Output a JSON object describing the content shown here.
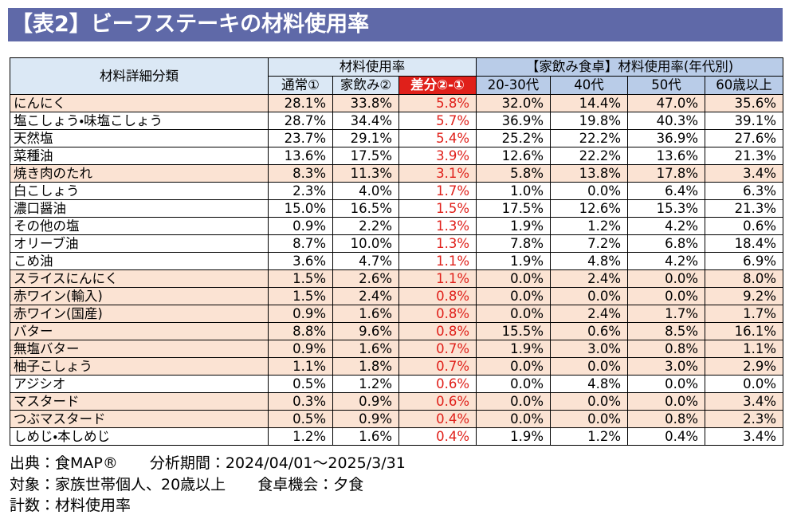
{
  "header": {
    "title": "【表2】ビーフステーキの材料使用率"
  },
  "table": {
    "group_headers": [
      "材料詳細分類",
      "材料使用率",
      "【家飲み食卓】材料使用率(年代別)"
    ],
    "columns": [
      "通常①",
      "家飲み②",
      "差分②-①",
      "20-30代",
      "40代",
      "50代",
      "60歳以上"
    ],
    "rows": [
      {
        "label": "にんにく",
        "values": [
          "28.1%",
          "33.8%",
          "5.8%",
          "32.0%",
          "14.4%",
          "47.0%",
          "35.6%"
        ],
        "color": "#fbe3d3"
      },
      {
        "label": "塩こしょう・味塩こしょう",
        "values": [
          "28.7%",
          "34.4%",
          "5.7%",
          "36.9%",
          "19.8%",
          "40.3%",
          "39.1%"
        ],
        "color": "#ffffff"
      },
      {
        "label": "天然塩",
        "values": [
          "23.7%",
          "29.1%",
          "5.4%",
          "25.2%",
          "22.2%",
          "36.9%",
          "27.6%"
        ],
        "color": "#ffffff"
      },
      {
        "label": "菜種油",
        "values": [
          "13.6%",
          "17.5%",
          "3.9%",
          "12.6%",
          "22.2%",
          "13.6%",
          "21.3%"
        ],
        "color": "#ffffff"
      },
      {
        "label": "焼き肉のたれ",
        "values": [
          "8.3%",
          "11.3%",
          "3.1%",
          "5.8%",
          "13.8%",
          "17.8%",
          "3.4%"
        ],
        "color": "#fbe3d3"
      },
      {
        "label": "白こしょう",
        "values": [
          "2.3%",
          "4.0%",
          "1.7%",
          "1.0%",
          "0.0%",
          "6.4%",
          "6.3%"
        ],
        "color": "#ffffff"
      },
      {
        "label": "濃口醤油",
        "values": [
          "15.0%",
          "16.5%",
          "1.5%",
          "17.5%",
          "12.6%",
          "15.3%",
          "21.3%"
        ],
        "color": "#ffffff"
      },
      {
        "label": "その他の塩",
        "values": [
          "0.9%",
          "2.2%",
          "1.3%",
          "1.9%",
          "1.2%",
          "4.2%",
          "0.6%"
        ],
        "color": "#ffffff"
      },
      {
        "label": "オリーブ油",
        "values": [
          "8.7%",
          "10.0%",
          "1.3%",
          "7.8%",
          "7.2%",
          "6.8%",
          "18.4%"
        ],
        "color": "#ffffff"
      },
      {
        "label": "こめ油",
        "values": [
          "3.6%",
          "4.7%",
          "1.1%",
          "1.9%",
          "4.8%",
          "4.2%",
          "6.9%"
        ],
        "color": "#ffffff"
      },
      {
        "label": "スライスにんにく",
        "values": [
          "1.5%",
          "2.6%",
          "1.1%",
          "0.0%",
          "2.4%",
          "0.0%",
          "8.0%"
        ],
        "color": "#fbe3d3"
      },
      {
        "label": "赤ワイン(輸入)",
        "values": [
          "1.5%",
          "2.4%",
          "0.8%",
          "0.0%",
          "0.0%",
          "0.0%",
          "9.2%"
        ],
        "color": "#fbe3d3"
      },
      {
        "label": "赤ワイン(国産)",
        "values": [
          "0.9%",
          "1.6%",
          "0.8%",
          "0.0%",
          "2.4%",
          "1.7%",
          "1.7%"
        ],
        "color": "#fbe3d3"
      },
      {
        "label": "バター",
        "values": [
          "8.8%",
          "9.6%",
          "0.8%",
          "15.5%",
          "0.6%",
          "8.5%",
          "16.1%"
        ],
        "color": "#fbe3d3"
      },
      {
        "label": "無塩バター",
        "values": [
          "0.9%",
          "1.6%",
          "0.7%",
          "1.9%",
          "3.0%",
          "0.8%",
          "1.1%"
        ],
        "color": "#fbe3d3"
      },
      {
        "label": "柚子こしょう",
        "values": [
          "1.1%",
          "1.8%",
          "0.7%",
          "0.0%",
          "0.0%",
          "3.0%",
          "2.9%"
        ],
        "color": "#fbe3d3"
      },
      {
        "label": "アジシオ",
        "values": [
          "0.5%",
          "1.2%",
          "0.6%",
          "0.0%",
          "4.8%",
          "0.0%",
          "0.0%"
        ],
        "color": "#ffffff"
      },
      {
        "label": "マスタード",
        "values": [
          "0.3%",
          "0.9%",
          "0.6%",
          "0.0%",
          "0.0%",
          "0.0%",
          "3.4%"
        ],
        "color": "#fbe3d3"
      },
      {
        "label": "つぶマスタード",
        "values": [
          "0.5%",
          "0.9%",
          "0.4%",
          "0.0%",
          "0.0%",
          "0.8%",
          "2.3%"
        ],
        "color": "#fbe3d3"
      },
      {
        "label": "しめじ・本しめじ",
        "values": [
          "1.2%",
          "1.6%",
          "0.4%",
          "1.9%",
          "1.2%",
          "0.4%",
          "3.4%"
        ],
        "color": "#ffffff"
      }
    ]
  },
  "footer": {
    "lines": [
      [
        "出典：食MAP®",
        "分析期間：2024/04/01～2025/3/31"
      ],
      [
        "対象：家族世帯個人、20歳以上",
        "食卓機会：夕食"
      ],
      [
        "計数：材料使用率"
      ]
    ]
  }
}
